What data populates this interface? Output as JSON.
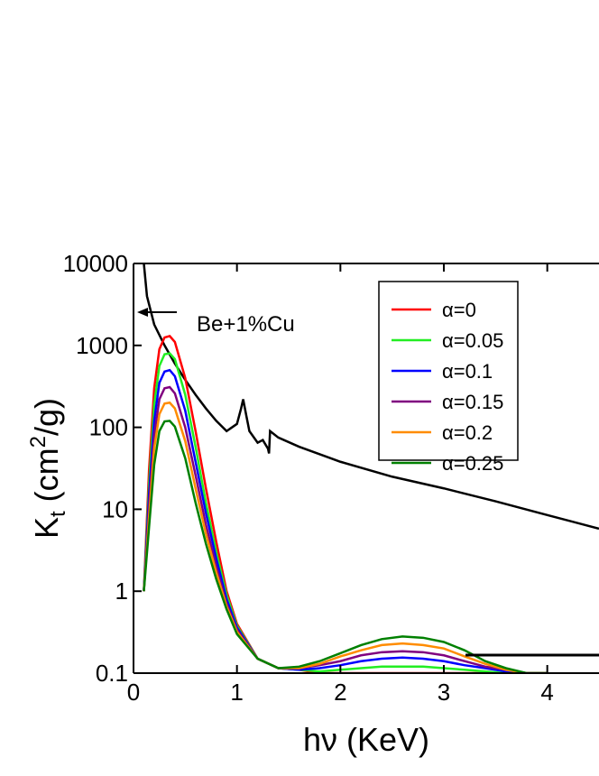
{
  "chart_data": {
    "type": "line",
    "x_label": "hν (KeV)",
    "y_label": {
      "symbol": "K",
      "subscript": "t",
      "unit_open": " (cm",
      "superscript": "2",
      "unit_close": "/g)"
    },
    "annotation": "Be+1%Cu",
    "xlim": [
      0,
      4.5
    ],
    "xticks": [
      0,
      1,
      2,
      3,
      4
    ],
    "ylim": [
      0.1,
      10000
    ],
    "yticks": [
      0.1,
      1,
      10,
      100,
      1000,
      10000
    ],
    "yscale": "log",
    "legend": "upper right",
    "series": [
      {
        "color": "#000000",
        "x": [
          0.1,
          0.13,
          0.2,
          0.3,
          0.4,
          0.5,
          0.6,
          0.7,
          0.8,
          0.9,
          1.0,
          1.04,
          1.06,
          1.09,
          1.12,
          1.2,
          1.25,
          1.3,
          1.31,
          1.32,
          1.4,
          1.6,
          2.0,
          2.5,
          3.0,
          3.5,
          4.0,
          4.5
        ],
        "values": [
          10000,
          4000,
          1800,
          1000,
          600,
          380,
          250,
          170,
          120,
          90,
          110,
          170,
          220,
          140,
          90,
          65,
          70,
          55,
          48,
          90,
          75,
          58,
          38,
          25,
          18,
          12.5,
          8.5,
          5.8
        ]
      },
      {
        "name": "α=0",
        "color": "#ff0000",
        "x": [
          0.1,
          0.15,
          0.2,
          0.25,
          0.3,
          0.35,
          0.4,
          0.5,
          0.6,
          0.7,
          0.8,
          0.9,
          1.0,
          1.2,
          1.4,
          1.6,
          1.8,
          2.0,
          2.2,
          2.4,
          2.6,
          2.8,
          3.0,
          3.2,
          3.4,
          3.6,
          3.8,
          4.0
        ],
        "values": [
          1,
          30,
          300,
          900,
          1250,
          1300,
          1100,
          400,
          90,
          18,
          4,
          1,
          0.4,
          0.15,
          0.115,
          0.11,
          0.1,
          0.1,
          0.1,
          0.1,
          0.1,
          0.1,
          0.1,
          0.1,
          0.1,
          0.1,
          0.1,
          0.1
        ]
      },
      {
        "name": "α=0.05",
        "color": "#22ee22",
        "x": [
          0.1,
          0.15,
          0.2,
          0.25,
          0.3,
          0.35,
          0.4,
          0.5,
          0.6,
          0.7,
          0.8,
          0.9,
          1.0,
          1.2,
          1.4,
          1.6,
          1.8,
          2.0,
          2.2,
          2.4,
          2.6,
          2.8,
          3.0,
          3.2,
          3.4,
          3.6,
          3.8,
          4.0
        ],
        "values": [
          1,
          20,
          190,
          560,
          780,
          800,
          680,
          250,
          58,
          12,
          3,
          0.9,
          0.38,
          0.15,
          0.115,
          0.11,
          0.105,
          0.11,
          0.115,
          0.12,
          0.12,
          0.12,
          0.115,
          0.11,
          0.105,
          0.1,
          0.1,
          0.1
        ]
      },
      {
        "name": "α=0.1",
        "color": "#0000ff",
        "x": [
          0.1,
          0.15,
          0.2,
          0.25,
          0.3,
          0.35,
          0.4,
          0.5,
          0.6,
          0.7,
          0.8,
          0.9,
          1.0,
          1.2,
          1.4,
          1.6,
          1.8,
          2.0,
          2.2,
          2.4,
          2.6,
          2.8,
          3.0,
          3.2,
          3.4,
          3.6,
          3.8,
          4.0
        ],
        "values": [
          1,
          15,
          120,
          350,
          480,
          500,
          420,
          160,
          38,
          9,
          2.5,
          0.8,
          0.36,
          0.15,
          0.115,
          0.11,
          0.115,
          0.125,
          0.14,
          0.15,
          0.155,
          0.15,
          0.14,
          0.125,
          0.115,
          0.105,
          0.1,
          0.1
        ]
      },
      {
        "name": "α=0.15",
        "color": "#800080",
        "x": [
          0.1,
          0.15,
          0.2,
          0.25,
          0.3,
          0.35,
          0.4,
          0.5,
          0.6,
          0.7,
          0.8,
          0.9,
          1.0,
          1.2,
          1.4,
          1.6,
          1.8,
          2.0,
          2.2,
          2.4,
          2.6,
          2.8,
          3.0,
          3.2,
          3.4,
          3.6,
          3.8,
          4.0
        ],
        "values": [
          1,
          11,
          80,
          220,
          300,
          310,
          260,
          100,
          26,
          6.5,
          2,
          0.7,
          0.34,
          0.15,
          0.115,
          0.115,
          0.125,
          0.14,
          0.165,
          0.18,
          0.185,
          0.18,
          0.165,
          0.14,
          0.12,
          0.11,
          0.1,
          0.1
        ]
      },
      {
        "name": "α=0.2",
        "color": "#ff8c00",
        "x": [
          0.1,
          0.15,
          0.2,
          0.25,
          0.3,
          0.35,
          0.4,
          0.5,
          0.6,
          0.7,
          0.8,
          0.9,
          1.0,
          1.2,
          1.4,
          1.6,
          1.8,
          2.0,
          2.2,
          2.4,
          2.6,
          2.8,
          3.0,
          3.2,
          3.4,
          3.6,
          3.8,
          4.0
        ],
        "values": [
          1,
          8,
          55,
          145,
          195,
          200,
          170,
          68,
          18,
          5,
          1.7,
          0.65,
          0.32,
          0.15,
          0.115,
          0.115,
          0.13,
          0.16,
          0.19,
          0.22,
          0.23,
          0.22,
          0.2,
          0.16,
          0.13,
          0.11,
          0.1,
          0.1
        ]
      },
      {
        "name": "α=0.25",
        "color": "#008000",
        "x": [
          0.1,
          0.15,
          0.2,
          0.25,
          0.3,
          0.35,
          0.4,
          0.5,
          0.6,
          0.7,
          0.8,
          0.9,
          1.0,
          1.2,
          1.4,
          1.6,
          1.8,
          2.0,
          2.2,
          2.4,
          2.6,
          2.8,
          3.0,
          3.2,
          3.4,
          3.6,
          3.8,
          4.0
        ],
        "values": [
          1,
          6,
          35,
          90,
          118,
          120,
          102,
          42,
          12,
          3.8,
          1.4,
          0.6,
          0.3,
          0.15,
          0.115,
          0.12,
          0.14,
          0.175,
          0.22,
          0.26,
          0.28,
          0.27,
          0.24,
          0.19,
          0.14,
          0.115,
          0.1,
          0.1
        ]
      }
    ]
  }
}
